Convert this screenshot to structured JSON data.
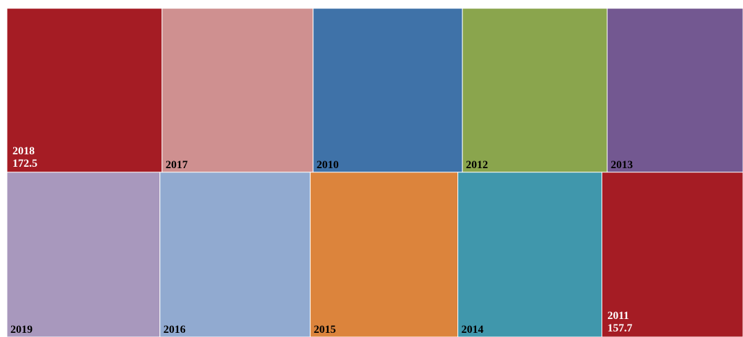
{
  "chart_data": {
    "type": "treemap",
    "categories": [
      "2018",
      "2017",
      "2010",
      "2012",
      "2013",
      "2019",
      "2016",
      "2015",
      "2014",
      "2011"
    ],
    "values": [
      172.5,
      168,
      166,
      161,
      151,
      171,
      168,
      165,
      161,
      157.7
    ],
    "colors": [
      "#a51c24",
      "#cf9090",
      "#3f72a8",
      "#8aa54d",
      "#735891",
      "#a898bd",
      "#91aad0",
      "#dc843c",
      "#4097ac",
      "#a51c24"
    ],
    "show_value": [
      true,
      false,
      false,
      false,
      false,
      false,
      false,
      false,
      false,
      true
    ]
  }
}
